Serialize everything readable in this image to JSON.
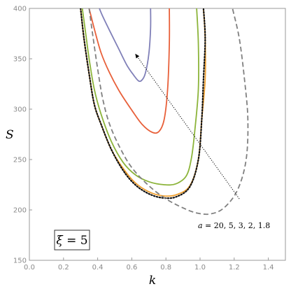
{
  "chart_data": {
    "type": "line",
    "xlabel": "k",
    "ylabel": "S",
    "xlim": [
      0.0,
      1.5
    ],
    "ylim": [
      150,
      400
    ],
    "xticks": [
      "0.0",
      "0.2",
      "0.4",
      "0.6",
      "0.8",
      "1.0",
      "1.2",
      "1.4"
    ],
    "yticks": [
      "150",
      "200",
      "250",
      "300",
      "350",
      "400"
    ],
    "xtick_values": [
      0.0,
      0.2,
      0.4,
      0.6,
      0.8,
      1.0,
      1.2,
      1.4
    ],
    "ytick_values": [
      150,
      200,
      250,
      300,
      350,
      400
    ],
    "grid": false,
    "series": [
      {
        "color": "#8080b8",
        "style": "solid",
        "points": [
          [
            0.41,
            400
          ],
          [
            0.43,
            392
          ],
          [
            0.47,
            378
          ],
          [
            0.52,
            361
          ],
          [
            0.57,
            344
          ],
          [
            0.61,
            334
          ],
          [
            0.64,
            328
          ],
          [
            0.66,
            329
          ],
          [
            0.68,
            336
          ],
          [
            0.7,
            355
          ],
          [
            0.71,
            380
          ],
          [
            0.71,
            400
          ]
        ]
      },
      {
        "color": "#e8603a",
        "style": "solid",
        "points": [
          [
            0.35,
            400
          ],
          [
            0.38,
            380
          ],
          [
            0.42,
            356
          ],
          [
            0.47,
            336
          ],
          [
            0.53,
            317
          ],
          [
            0.6,
            299
          ],
          [
            0.66,
            285
          ],
          [
            0.72,
            277
          ],
          [
            0.76,
            278
          ],
          [
            0.79,
            290
          ],
          [
            0.81,
            320
          ],
          [
            0.82,
            365
          ],
          [
            0.82,
            400
          ]
        ]
      },
      {
        "color": "#8cb43a",
        "style": "solid",
        "points": [
          [
            0.31,
            400
          ],
          [
            0.33,
            375
          ],
          [
            0.35,
            350
          ],
          [
            0.38,
            320
          ],
          [
            0.42,
            295
          ],
          [
            0.48,
            268
          ],
          [
            0.55,
            247
          ],
          [
            0.62,
            235
          ],
          [
            0.7,
            228
          ],
          [
            0.79,
            225
          ],
          [
            0.86,
            226
          ],
          [
            0.92,
            234
          ],
          [
            0.95,
            252
          ],
          [
            0.97,
            280
          ],
          [
            0.99,
            320
          ],
          [
            0.99,
            365
          ],
          [
            0.98,
            400
          ]
        ]
      },
      {
        "color": "#f0a030",
        "style": "solid",
        "points": [
          [
            0.3,
            400
          ],
          [
            0.32,
            370
          ],
          [
            0.35,
            335
          ],
          [
            0.38,
            305
          ],
          [
            0.42,
            285
          ],
          [
            0.48,
            260
          ],
          [
            0.55,
            241
          ],
          [
            0.62,
            227
          ],
          [
            0.7,
            218
          ],
          [
            0.78,
            214
          ],
          [
            0.86,
            215
          ],
          [
            0.94,
            224
          ],
          [
            0.99,
            250
          ],
          [
            1.01,
            290
          ],
          [
            1.03,
            330
          ],
          [
            1.03,
            370
          ],
          [
            1.02,
            400
          ]
        ]
      },
      {
        "color": "#111111",
        "style": "dotted",
        "points": [
          [
            0.3,
            400
          ],
          [
            0.32,
            370
          ],
          [
            0.35,
            335
          ],
          [
            0.38,
            305
          ],
          [
            0.42,
            285
          ],
          [
            0.48,
            260
          ],
          [
            0.55,
            239
          ],
          [
            0.62,
            225
          ],
          [
            0.7,
            216
          ],
          [
            0.78,
            212
          ],
          [
            0.86,
            213
          ],
          [
            0.94,
            223
          ],
          [
            0.99,
            250
          ],
          [
            1.01,
            290
          ],
          [
            1.02,
            330
          ],
          [
            1.03,
            370
          ],
          [
            1.02,
            400
          ]
        ]
      },
      {
        "color": "#808080",
        "style": "dashed",
        "points": [
          [
            0.35,
            400
          ],
          [
            0.37,
            375
          ],
          [
            0.4,
            340
          ],
          [
            0.43,
            310
          ],
          [
            0.47,
            285
          ],
          [
            0.53,
            262
          ],
          [
            0.6,
            242
          ],
          [
            0.7,
            224
          ],
          [
            0.8,
            211
          ],
          [
            0.9,
            202
          ],
          [
            0.98,
            197
          ],
          [
            1.06,
            196
          ],
          [
            1.14,
            202
          ],
          [
            1.22,
            220
          ],
          [
            1.27,
            250
          ],
          [
            1.28,
            290
          ],
          [
            1.26,
            330
          ],
          [
            1.23,
            370
          ],
          [
            1.19,
            400
          ]
        ]
      }
    ],
    "annotations": {
      "arrow_from": [
        1.23,
        211
      ],
      "arrow_to": [
        0.62,
        355
      ],
      "a_label_var": "a",
      "a_label_values": " = 20, 5, 3, 2, 1.8",
      "xi_var": "ξ",
      "xi_value": " = 5"
    }
  }
}
